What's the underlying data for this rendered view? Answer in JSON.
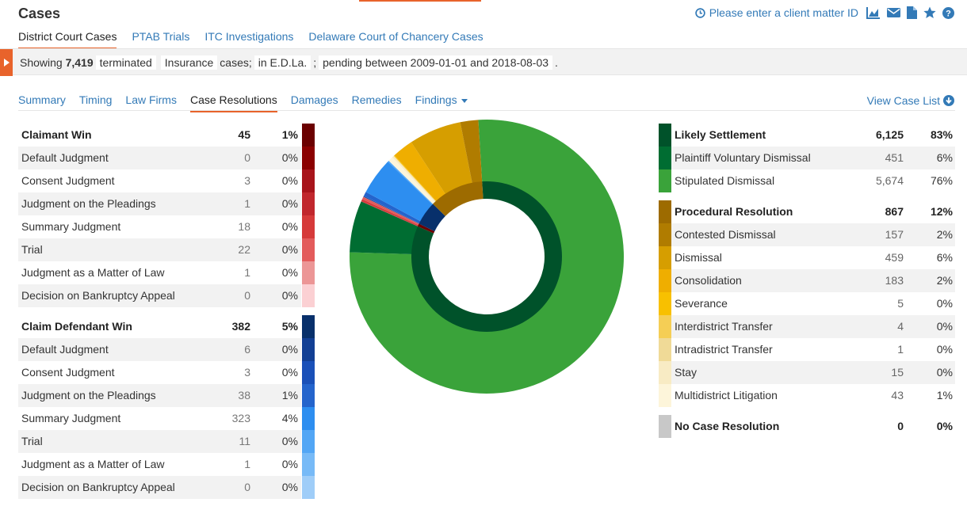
{
  "header": {
    "title": "Cases",
    "client_matter": "Please enter a client matter ID",
    "icons": [
      "clock-icon",
      "chart-icon",
      "envelope-icon",
      "document-icon",
      "star-icon",
      "help-icon"
    ]
  },
  "court_tabs": [
    {
      "label": "District Court Cases",
      "active": true
    },
    {
      "label": "PTAB Trials",
      "active": false
    },
    {
      "label": "ITC Investigations",
      "active": false
    },
    {
      "label": "Delaware Court of Chancery Cases",
      "active": false
    }
  ],
  "filter": {
    "showing": "Showing",
    "count": "7,419",
    "status": "terminated",
    "case_type": "Insurance",
    "cases_word": "cases;",
    "court": "in E.D.La.",
    "sep": ";",
    "pending": "pending between 2009-01-01 and 2018-08-03",
    "end": "."
  },
  "subtabs": [
    {
      "label": "Summary",
      "active": false
    },
    {
      "label": "Timing",
      "active": false
    },
    {
      "label": "Law Firms",
      "active": false
    },
    {
      "label": "Case Resolutions",
      "active": true
    },
    {
      "label": "Damages",
      "active": false
    },
    {
      "label": "Remedies",
      "active": false
    },
    {
      "label": "Findings",
      "active": false,
      "dropdown": true
    }
  ],
  "view_case_list": "View Case List",
  "left_table": [
    {
      "type": "group",
      "label": "Claimant Win",
      "count": "45",
      "pct": "1%",
      "color": "#6b0000"
    },
    {
      "type": "sub",
      "label": "Default Judgment",
      "count": "0",
      "pct": "0%",
      "color": "#8b0000"
    },
    {
      "type": "sub",
      "label": "Consent Judgment",
      "count": "3",
      "pct": "0%",
      "color": "#a8141b"
    },
    {
      "type": "sub",
      "label": "Judgment on the Pleadings",
      "count": "1",
      "pct": "0%",
      "color": "#c1272d"
    },
    {
      "type": "sub",
      "label": "Summary Judgment",
      "count": "18",
      "pct": "0%",
      "color": "#d63a3a"
    },
    {
      "type": "sub",
      "label": "Trial",
      "count": "22",
      "pct": "0%",
      "color": "#e35b5b"
    },
    {
      "type": "sub",
      "label": "Judgment as a Matter of Law",
      "count": "1",
      "pct": "0%",
      "color": "#ec9696"
    },
    {
      "type": "sub",
      "label": "Decision on Bankruptcy Appeal",
      "count": "0",
      "pct": "0%",
      "color": "#fbd0d3"
    },
    {
      "type": "spacer"
    },
    {
      "type": "group",
      "label": "Claim Defendant Win",
      "count": "382",
      "pct": "5%",
      "color": "#08306b"
    },
    {
      "type": "sub",
      "label": "Default Judgment",
      "count": "6",
      "pct": "0%",
      "color": "#123f94"
    },
    {
      "type": "sub",
      "label": "Consent Judgment",
      "count": "3",
      "pct": "0%",
      "color": "#1a50b8"
    },
    {
      "type": "sub",
      "label": "Judgment on the Pleadings",
      "count": "38",
      "pct": "1%",
      "color": "#2464cc"
    },
    {
      "type": "sub",
      "label": "Summary Judgment",
      "count": "323",
      "pct": "4%",
      "color": "#2d8ef0"
    },
    {
      "type": "sub",
      "label": "Trial",
      "count": "11",
      "pct": "0%",
      "color": "#52a6f5"
    },
    {
      "type": "sub",
      "label": "Judgment as a Matter of Law",
      "count": "1",
      "pct": "0%",
      "color": "#77baf7"
    },
    {
      "type": "sub",
      "label": "Decision on Bankruptcy Appeal",
      "count": "0",
      "pct": "0%",
      "color": "#9fcdf8"
    }
  ],
  "right_table": [
    {
      "type": "group",
      "label": "Likely Settlement",
      "count": "6,125",
      "pct": "83%",
      "color": "#00522a"
    },
    {
      "type": "sub",
      "label": "Plaintiff Voluntary Dismissal",
      "count": "451",
      "pct": "6%",
      "color": "#006d32"
    },
    {
      "type": "sub",
      "label": "Stipulated Dismissal",
      "count": "5,674",
      "pct": "76%",
      "color": "#3aa33a"
    },
    {
      "type": "spacer"
    },
    {
      "type": "group",
      "label": "Procedural Resolution",
      "count": "867",
      "pct": "12%",
      "color": "#9d6b00"
    },
    {
      "type": "sub",
      "label": "Contested Dismissal",
      "count": "157",
      "pct": "2%",
      "color": "#b07c00"
    },
    {
      "type": "sub",
      "label": "Dismissal",
      "count": "459",
      "pct": "6%",
      "color": "#d69e00"
    },
    {
      "type": "sub",
      "label": "Consolidation",
      "count": "183",
      "pct": "2%",
      "color": "#efae00"
    },
    {
      "type": "sub",
      "label": "Severance",
      "count": "5",
      "pct": "0%",
      "color": "#f8c000"
    },
    {
      "type": "sub",
      "label": "Interdistrict Transfer",
      "count": "4",
      "pct": "0%",
      "color": "#f5ce55"
    },
    {
      "type": "sub",
      "label": "Intradistrict Transfer",
      "count": "1",
      "pct": "0%",
      "color": "#f0da97"
    },
    {
      "type": "sub",
      "label": "Stay",
      "count": "15",
      "pct": "0%",
      "color": "#f8ebc4"
    },
    {
      "type": "sub",
      "label": "Multidistrict Litigation",
      "count": "43",
      "pct": "1%",
      "color": "#fdf5da"
    },
    {
      "type": "spacer"
    },
    {
      "type": "group",
      "label": "No Case Resolution",
      "count": "0",
      "pct": "0%",
      "color": "#c8c8c8"
    }
  ],
  "chart_data": {
    "type": "pie",
    "style": "sunburst-donut",
    "inner_ring": [
      {
        "name": "Likely Settlement",
        "value": 6125,
        "color": "#00522a"
      },
      {
        "name": "Claimant Win",
        "value": 45,
        "color": "#6b0000"
      },
      {
        "name": "Claim Defendant Win",
        "value": 382,
        "color": "#08306b"
      },
      {
        "name": "Procedural Resolution",
        "value": 867,
        "color": "#9d6b00"
      }
    ],
    "outer_ring": [
      {
        "name": "Stipulated Dismissal",
        "value": 5674,
        "color": "#3aa33a"
      },
      {
        "name": "Plaintiff Voluntary Dismissal",
        "value": 451,
        "color": "#006d32"
      },
      {
        "name": "Claimant Win - Consent Judgment",
        "value": 3,
        "color": "#a8141b"
      },
      {
        "name": "Claimant Win - Judgment on the Pleadings",
        "value": 1,
        "color": "#c1272d"
      },
      {
        "name": "Claimant Win - Summary Judgment",
        "value": 18,
        "color": "#d63a3a"
      },
      {
        "name": "Claimant Win - Trial",
        "value": 22,
        "color": "#e35b5b"
      },
      {
        "name": "Claimant Win - Judgment as a Matter of Law",
        "value": 1,
        "color": "#ec9696"
      },
      {
        "name": "Claim Defendant Win - Default Judgment",
        "value": 6,
        "color": "#123f94"
      },
      {
        "name": "Claim Defendant Win - Consent Judgment",
        "value": 3,
        "color": "#1a50b8"
      },
      {
        "name": "Claim Defendant Win - Judgment on the Pleadings",
        "value": 38,
        "color": "#2464cc"
      },
      {
        "name": "Claim Defendant Win - Summary Judgment",
        "value": 323,
        "color": "#2d8ef0"
      },
      {
        "name": "Claim Defendant Win - Trial",
        "value": 11,
        "color": "#52a6f5"
      },
      {
        "name": "Claim Defendant Win - Judgment as a Matter of Law",
        "value": 1,
        "color": "#77baf7"
      },
      {
        "name": "Multidistrict Litigation",
        "value": 43,
        "color": "#fdf5da"
      },
      {
        "name": "Stay",
        "value": 15,
        "color": "#f8ebc4"
      },
      {
        "name": "Intradistrict Transfer",
        "value": 1,
        "color": "#f0da97"
      },
      {
        "name": "Interdistrict Transfer",
        "value": 4,
        "color": "#f5ce55"
      },
      {
        "name": "Severance",
        "value": 5,
        "color": "#f8c000"
      },
      {
        "name": "Consolidation",
        "value": 183,
        "color": "#efae00"
      },
      {
        "name": "Dismissal",
        "value": 459,
        "color": "#d69e00"
      },
      {
        "name": "Contested Dismissal",
        "value": 157,
        "color": "#b07c00"
      }
    ]
  }
}
